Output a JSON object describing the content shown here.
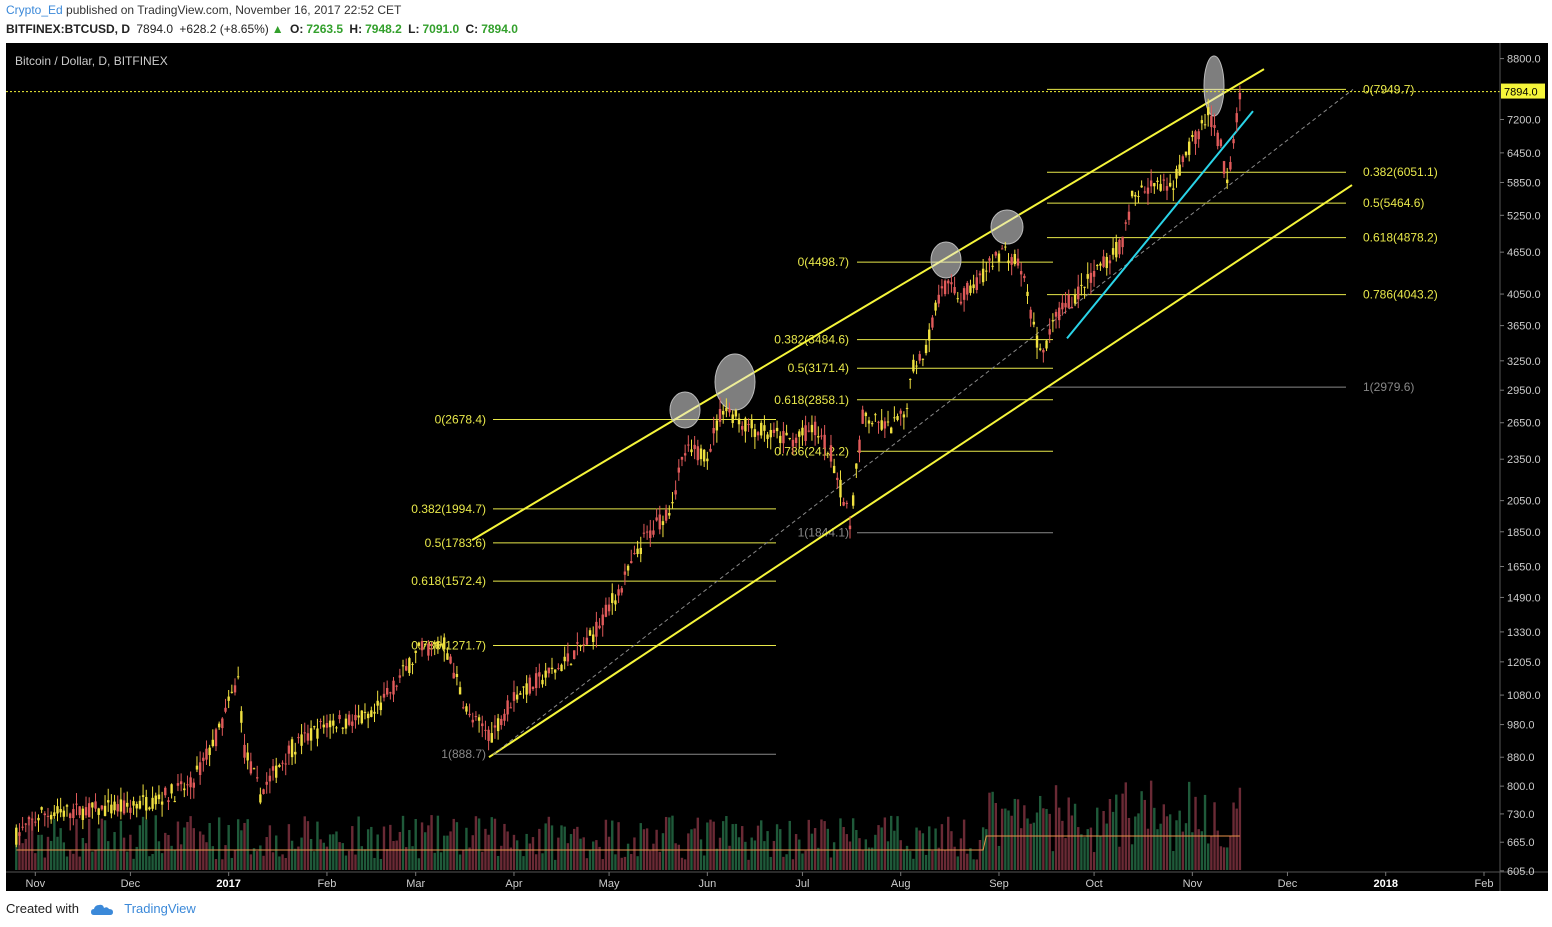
{
  "header": {
    "author": "Crypto_Ed",
    "published_text": "published on TradingView.com, November 16, 2017 22:52 CET",
    "symbol": "BITFINEX:BTCUSD, D",
    "last": "7894.0",
    "change": "+628.2 (+8.65%)",
    "open_label": "O:",
    "open": "7263.5",
    "high_label": "H:",
    "high": "7948.2",
    "low_label": "L:",
    "low": "7091.0",
    "close_label": "C:",
    "close": "7894.0"
  },
  "footer": {
    "created_with": "Created with",
    "brand": "TradingView"
  },
  "colors": {
    "up": "#f0e040",
    "down": "#e05a5a",
    "fib": "#e8e84a",
    "trend": "#f5f53a",
    "cyan": "#2ad4e8",
    "bg": "#000000"
  },
  "chart_data": {
    "type": "candlestick",
    "title": "Bitcoin / Dollar, D, BITFINEX",
    "y_scale": "log",
    "ylim": [
      605,
      8800
    ],
    "y_ticks": [
      8800,
      7894,
      7200,
      6450,
      5850,
      5250,
      4650,
      4050,
      3650,
      3250,
      2950,
      2650,
      2350,
      2050,
      1850,
      1650,
      1490,
      1330,
      1205,
      1080,
      980,
      880,
      800,
      730,
      665,
      605
    ],
    "y_tick_labels": [
      "8800.0",
      "7894.0",
      "7200.0",
      "6450.0",
      "5850.0",
      "5250.0",
      "4650.0",
      "4050.0",
      "3650.0",
      "3250.0",
      "2950.0",
      "2650.0",
      "2350.0",
      "2050.0",
      "1850.0",
      "1650.0",
      "1490.0",
      "1330.0",
      "1205.0",
      "1080.0",
      "980.0",
      "880.0",
      "800.0",
      "730.0",
      "665.0",
      "605.0"
    ],
    "last_price": 7894.0,
    "x_ticks": [
      "Nov",
      "Dec",
      "2017",
      "Feb",
      "Mar",
      "Apr",
      "May",
      "Jun",
      "Jul",
      "Aug",
      "Sep",
      "Oct",
      "Nov",
      "Dec",
      "2018",
      "Feb"
    ],
    "price_path": [
      [
        "2016-10-26",
        680
      ],
      [
        "2016-11-03",
        730
      ],
      [
        "2016-11-20",
        740
      ],
      [
        "2016-11-30",
        745
      ],
      [
        "2016-12-10",
        770
      ],
      [
        "2016-12-20",
        800
      ],
      [
        "2016-12-29",
        960
      ],
      [
        "2017-01-04",
        1140
      ],
      [
        "2017-01-06",
        900
      ],
      [
        "2017-01-11",
        780
      ],
      [
        "2017-01-20",
        900
      ],
      [
        "2017-02-01",
        985
      ],
      [
        "2017-02-15",
        1000
      ],
      [
        "2017-03-02",
        1250
      ],
      [
        "2017-03-10",
        1280
      ],
      [
        "2017-03-18",
        1000
      ],
      [
        "2017-03-25",
        950
      ],
      [
        "2017-04-01",
        1080
      ],
      [
        "2017-04-15",
        1180
      ],
      [
        "2017-04-25",
        1300
      ],
      [
        "2017-05-05",
        1550
      ],
      [
        "2017-05-12",
        1800
      ],
      [
        "2017-05-20",
        2000
      ],
      [
        "2017-05-25",
        2400
      ],
      [
        "2017-06-01",
        2400
      ],
      [
        "2017-06-06",
        2800
      ],
      [
        "2017-06-12",
        2650
      ],
      [
        "2017-06-20",
        2550
      ],
      [
        "2017-06-28",
        2500
      ],
      [
        "2017-07-05",
        2600
      ],
      [
        "2017-07-10",
        2400
      ],
      [
        "2017-07-16",
        1900
      ],
      [
        "2017-07-20",
        2700
      ],
      [
        "2017-07-28",
        2600
      ],
      [
        "2017-08-02",
        2700
      ],
      [
        "2017-08-05",
        3200
      ],
      [
        "2017-08-09",
        3400
      ],
      [
        "2017-08-14",
        4200
      ],
      [
        "2017-08-20",
        4000
      ],
      [
        "2017-08-27",
        4300
      ],
      [
        "2017-09-02",
        4700
      ],
      [
        "2017-09-08",
        4400
      ],
      [
        "2017-09-14",
        3300
      ],
      [
        "2017-09-20",
        3800
      ],
      [
        "2017-10-01",
        4300
      ],
      [
        "2017-10-10",
        4800
      ],
      [
        "2017-10-13",
        5600
      ],
      [
        "2017-10-20",
        5800
      ],
      [
        "2017-10-25",
        5700
      ],
      [
        "2017-11-01",
        6700
      ],
      [
        "2017-11-06",
        7300
      ],
      [
        "2017-11-10",
        6600
      ],
      [
        "2017-11-12",
        5800
      ],
      [
        "2017-11-15",
        7300
      ],
      [
        "2017-11-16",
        7894
      ]
    ],
    "fib_sets": [
      {
        "levels": [
          [
            "0",
            2678.4
          ],
          [
            "0.382",
            1994.7
          ],
          [
            "0.5",
            1783.6
          ],
          [
            "0.618",
            1572.4
          ],
          [
            "0.786",
            1271.7
          ],
          [
            "1",
            888.7
          ]
        ],
        "labels": [
          "0(2678.4)",
          "0.382(1994.7)",
          "0.5(1783.6)",
          "0.618(1572.4)",
          "0.786(1271.7)",
          "1(888.7)"
        ]
      },
      {
        "levels": [
          [
            "0",
            4498.7
          ],
          [
            "0.382",
            3484.6
          ],
          [
            "0.5",
            3171.4
          ],
          [
            "0.618",
            2858.1
          ],
          [
            "0.786",
            2412.2
          ],
          [
            "1",
            1844.1
          ]
        ],
        "labels": [
          "0(4498.7)",
          "0.382(3484.6)",
          "0.5(3171.4)",
          "0.618(2858.1)",
          "0.786(2412.2)",
          "1(1844.1)"
        ]
      },
      {
        "levels": [
          [
            "0",
            7949.7
          ],
          [
            "0.382",
            6051.1
          ],
          [
            "0.5",
            5464.6
          ],
          [
            "0.618",
            4878.2
          ],
          [
            "0.786",
            4043.2
          ],
          [
            "1",
            2979.6
          ]
        ],
        "labels": [
          "0(7949.7)",
          "0.382(6051.1)",
          "0.5(5464.6)",
          "0.618(4878.2)",
          "0.786(4043.2)",
          "1(2979.6)"
        ]
      }
    ],
    "legend": "none",
    "grid": false
  }
}
